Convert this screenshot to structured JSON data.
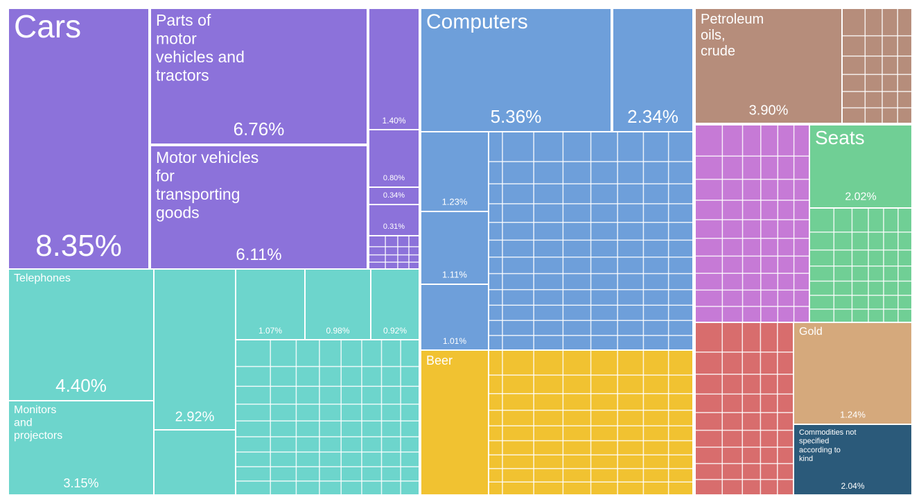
{
  "chart_data": {
    "type": "treemap",
    "categories": [
      "Cars",
      "Parts of motor vehicles and tractors",
      "Motor vehicles for transporting goods",
      null,
      null,
      null,
      null,
      "Computers",
      null,
      null,
      null,
      null,
      "Petroleum oils, crude",
      "Seats",
      "Gold",
      "Commodities not specified according to kind",
      "Beer",
      "Telephones",
      "Monitors and projectors",
      null,
      null,
      null,
      null
    ],
    "values": [
      8.35,
      6.76,
      6.11,
      1.4,
      0.8,
      0.34,
      0.31,
      5.36,
      2.34,
      1.23,
      1.11,
      1.01,
      3.9,
      2.02,
      1.24,
      2.04,
      2.2,
      4.4,
      3.15,
      2.92,
      1.07,
      0.98,
      0.92
    ],
    "value_labels": [
      "8.35%",
      "6.76%",
      "6.11%",
      "1.40%",
      "0.80%",
      "0.34%",
      "0.31%",
      "5.36%",
      "2.34%",
      "1.23%",
      "1.11%",
      "1.01%",
      "3.90%",
      "2.02%",
      "1.24%",
      "2.04%",
      null,
      "4.40%",
      "3.15%",
      "2.92%",
      "1.07%",
      "0.98%",
      "0.92%"
    ]
  }
}
